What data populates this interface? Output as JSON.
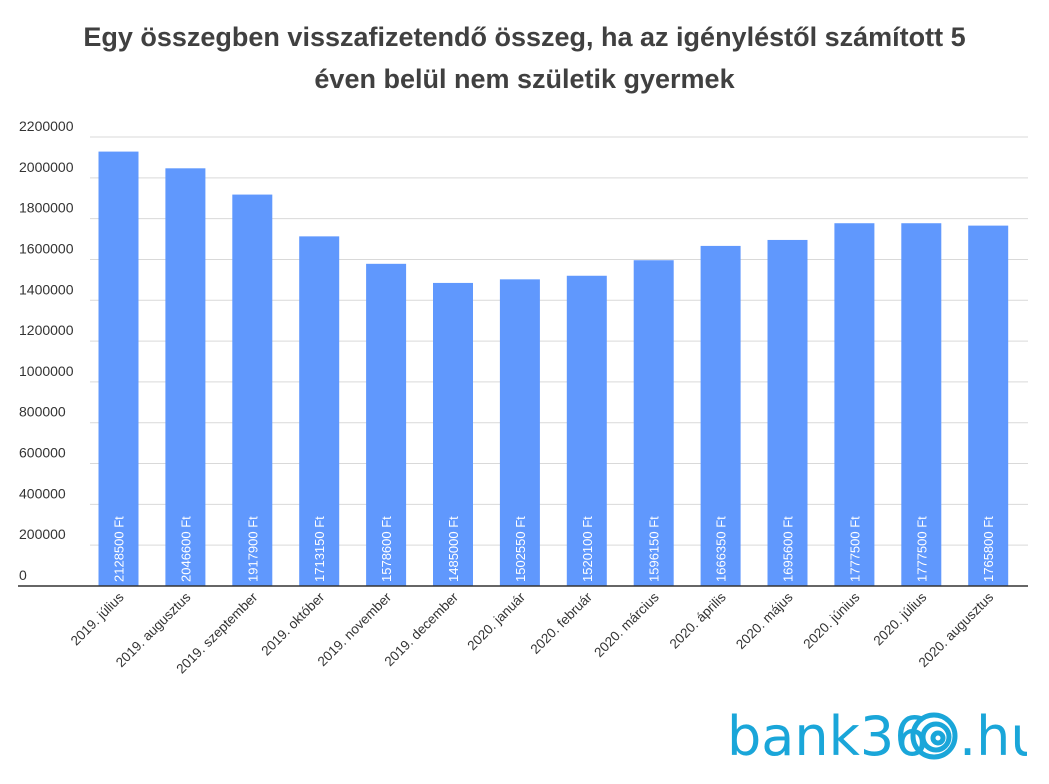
{
  "title_lines": [
    "Egy összegben visszafizetendő összeg, ha az igényléstől számított 5",
    "éven belül nem születik gyermek"
  ],
  "brand": {
    "prefix": "bank36",
    "suffix": ".hu",
    "color": "#1aa6d9"
  },
  "chart_data": {
    "type": "bar",
    "title": "Egy összegben visszafizetendő összeg, ha az igényléstől számított 5 éven belül nem születik gyermek",
    "categories": [
      "2019. július",
      "2019. augusztus",
      "2019. szeptember",
      "2019. október",
      "2019. november",
      "2019. december",
      "2020. január",
      "2020. február",
      "2020. március",
      "2020. április",
      "2020. május",
      "2020. június",
      "2020. július",
      "2020. augusztus"
    ],
    "values": [
      2128500,
      2046600,
      1917900,
      1713150,
      1578600,
      1485000,
      1502550,
      1520100,
      1596150,
      1666350,
      1695600,
      1777500,
      1777500,
      1765800
    ],
    "data_labels": [
      "2128500 Ft",
      "2046600 Ft",
      "1917900 Ft",
      "1713150 Ft",
      "1578600 Ft",
      "1485000 Ft",
      "1502550 Ft",
      "1520100 Ft",
      "1596150 Ft",
      "1666350 Ft",
      "1695600 Ft",
      "1777500 Ft",
      "1777500 Ft",
      "1765800 Ft"
    ],
    "yticks": [
      "0",
      "200000",
      "400000",
      "600000",
      "800000",
      "1000000",
      "1200000",
      "1400000",
      "1600000",
      "1800000",
      "2000000",
      "2200000"
    ],
    "ylim": [
      0,
      2200000
    ],
    "bar_color": "#6098fd",
    "grid": true
  }
}
